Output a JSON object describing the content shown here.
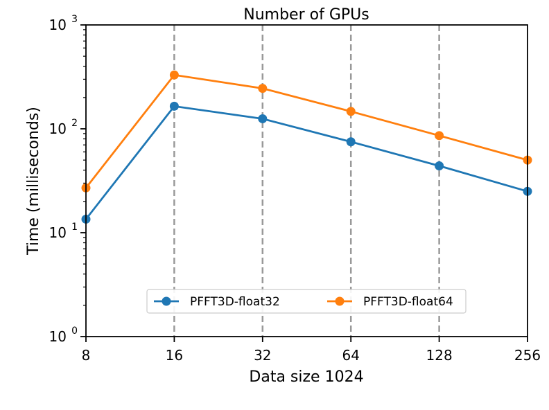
{
  "chart_data": {
    "type": "line",
    "title": "Number of GPUs",
    "xlabel": "Data size 1024",
    "ylabel": "Time (milliseconds)",
    "x_scale": "log2",
    "y_scale": "log10",
    "x": [
      8,
      16,
      32,
      64,
      128,
      256
    ],
    "x_tick_labels": [
      "8",
      "16",
      "32",
      "64",
      "128",
      "256"
    ],
    "xlim": [
      8,
      256
    ],
    "ylim": [
      1,
      1000
    ],
    "y_ticks": [
      {
        "value": 1,
        "base": "10",
        "exp": "0"
      },
      {
        "value": 10,
        "base": "10",
        "exp": "1"
      },
      {
        "value": 100,
        "base": "10",
        "exp": "2"
      },
      {
        "value": 1000,
        "base": "10",
        "exp": "3"
      }
    ],
    "vertical_dashed_lines_at": [
      16,
      32,
      64,
      128
    ],
    "legend_position": "lower center",
    "series": [
      {
        "name": "PFFT3D-float32",
        "color": "#1f77b4",
        "values": [
          13.5,
          165,
          125,
          75,
          44,
          25
        ]
      },
      {
        "name": "PFFT3D-float64",
        "color": "#ff7f0e",
        "values": [
          27,
          330,
          245,
          147,
          86,
          50
        ]
      }
    ]
  }
}
